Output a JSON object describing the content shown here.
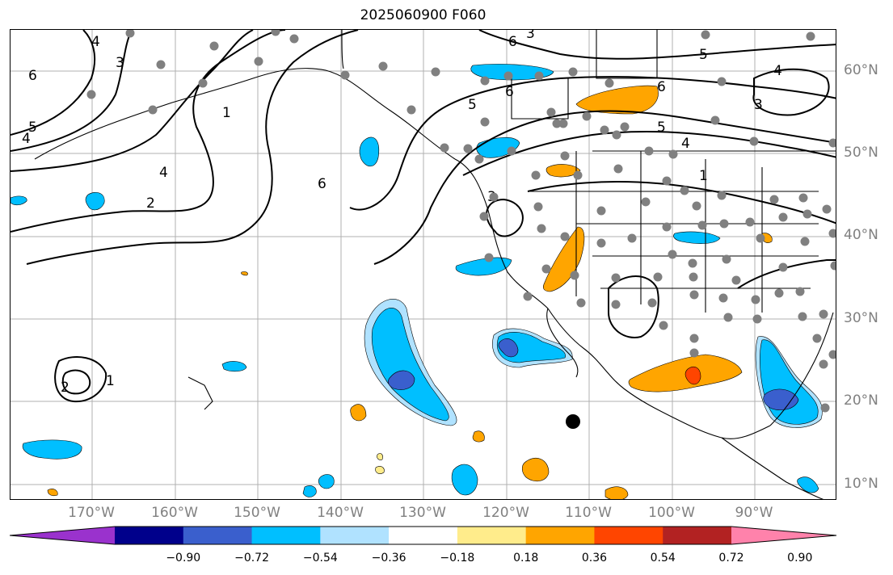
{
  "title": "2025060900 F060",
  "lat_labels": [
    "60°N",
    "50°N",
    "40°N",
    "30°N",
    "20°N",
    "10°N"
  ],
  "lon_labels": [
    "170°W",
    "160°W",
    "150°W",
    "140°W",
    "130°W",
    "120°W",
    "110°W",
    "100°W",
    "90°W"
  ],
  "colorbar": {
    "colors": [
      "#9a32cd",
      "#00008b",
      "#3a5fcd",
      "#00bfff",
      "#b0e2ff",
      "#ffffff",
      "#ffec8b",
      "#ffa500",
      "#ff4500",
      "#b22222",
      "#ff82ab"
    ],
    "tick_labels": [
      "−0.90",
      "−0.72",
      "−0.54",
      "−0.36",
      "−0.18",
      "0.18",
      "0.36",
      "0.54",
      "0.72",
      "0.90"
    ]
  },
  "contour_labels": [
    "6",
    "5",
    "4",
    "3",
    "4",
    "2",
    "1",
    "4",
    "6",
    "5",
    "6",
    "6",
    "5",
    "4",
    "3",
    "3",
    "6",
    "5",
    "4",
    "1",
    "3",
    "2",
    "1"
  ],
  "field_colors": {
    "neg_light": "#b0e2ff",
    "neg": "#00bfff",
    "neg_strong": "#3a5fcd",
    "neg_stronger": "#00008b",
    "pos_light": "#ffec8b",
    "pos": "#ffa500",
    "pos_strong": "#ff4500",
    "station_dot": "#808080",
    "grid": "#b0b0b0"
  }
}
